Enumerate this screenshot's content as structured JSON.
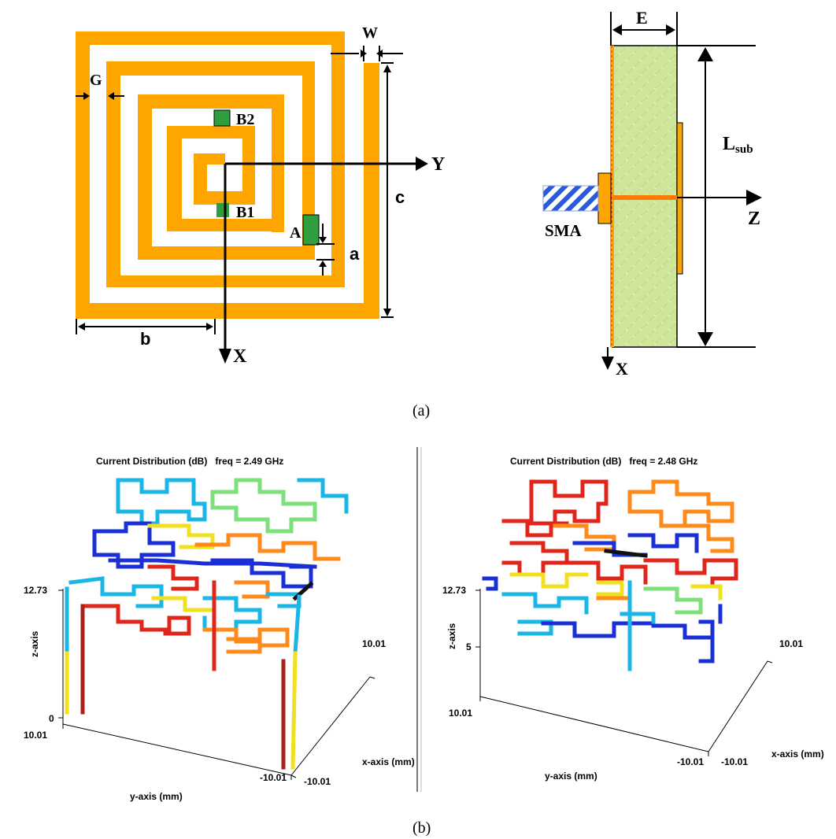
{
  "panel_a": {
    "caption": "(a)",
    "spiral_view": {
      "labels": {
        "W": "W",
        "G": "G",
        "B2": "B2",
        "B1": "B1",
        "A": "A",
        "Y": "Y",
        "X": "X",
        "a": "a",
        "b": "b",
        "c": "c"
      },
      "colors": {
        "conductor": "#ffa500",
        "pad": "#2e9e3e",
        "line": "#000000"
      }
    },
    "side_view": {
      "labels": {
        "E": "E",
        "Lsub_main": "L",
        "Lsub_sub": "sub",
        "Z": "Z",
        "X": "X",
        "SMA": "SMA"
      },
      "colors": {
        "substrate": "#cfe59a",
        "patch": "#ffa500",
        "probe": "#ff7a00",
        "connector_stripe": "#2a5bd7"
      }
    }
  },
  "panel_b": {
    "caption": "(b)",
    "plots": [
      {
        "title": "Current Distribution (dB)   freq = 2.49 GHz",
        "z_axis_label": "z-axis",
        "z_ticks": [
          "12.73",
          "0"
        ],
        "y_axis_label": "y-axis (mm)",
        "y_ticks": [
          "10.01",
          "-10.01"
        ],
        "x_axis_label": "x-axis (mm)",
        "x_ticks": [
          "10.01",
          "-10.01"
        ]
      },
      {
        "title": "Current Distribution (dB)   freq = 2.48 GHz",
        "z_axis_label": "z-axis",
        "z_ticks": [
          "12.73",
          "5"
        ],
        "y_axis_label": "y-axis (mm)",
        "y_ticks": [
          "10.01",
          "-10.01"
        ],
        "x_axis_label": "x-axis (mm)",
        "x_ticks": [
          "10.01",
          "-10.01"
        ]
      }
    ],
    "colormap": [
      "#1a2fd6",
      "#19b6e6",
      "#7de07a",
      "#f0e020",
      "#ff8a1c",
      "#e0261b",
      "#a8201a"
    ]
  }
}
